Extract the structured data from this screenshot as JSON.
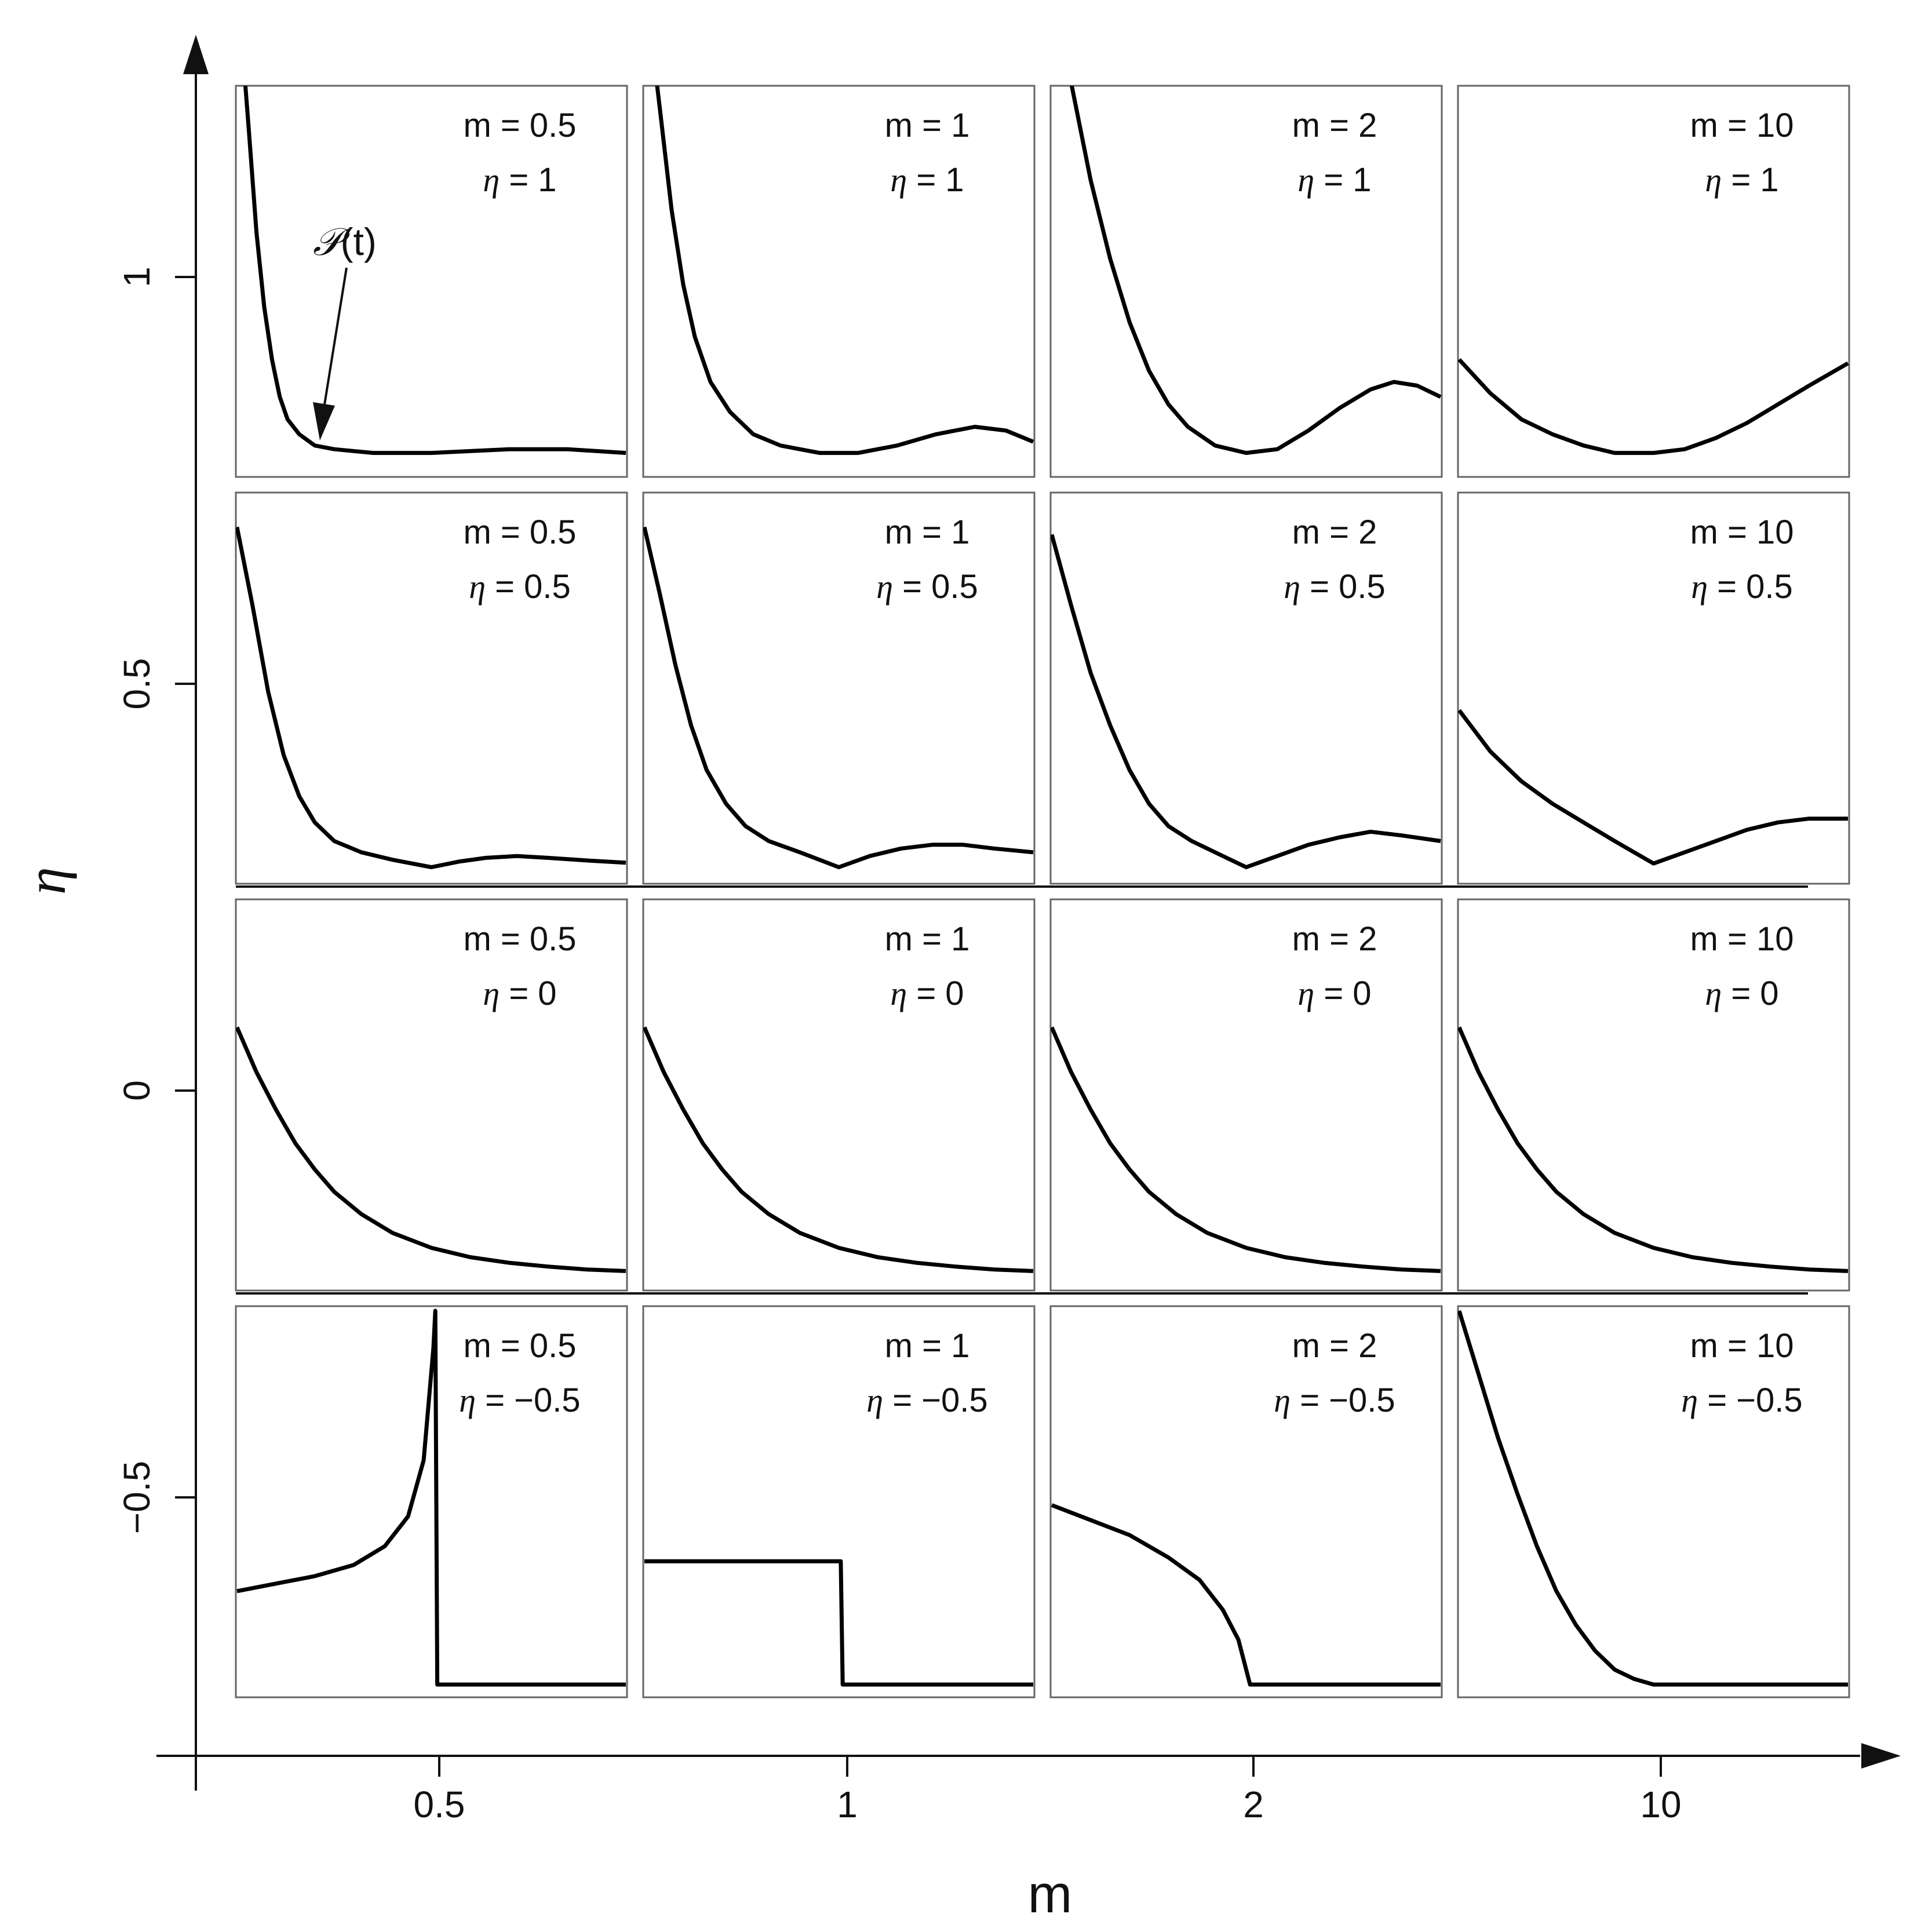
{
  "chart_data": {
    "type": "line",
    "layout": "small-multiples grid, 4 rows x 4 columns",
    "xlabel": "m",
    "ylabel": "η",
    "x_ticks": [
      "0.5",
      "1",
      "2",
      "10"
    ],
    "y_ticks": [
      "1",
      "0.5",
      "0",
      "−0.5"
    ],
    "annotation": {
      "symbol": "𝒫",
      "text": "(t)"
    },
    "label_templates": {
      "m_prefix": "m = ",
      "eta_symbol": "η",
      "eta_prefix": " = "
    },
    "rows": [
      {
        "eta": "1",
        "panels": [
          {
            "m": "0.5",
            "eta": "1",
            "x": [
              0.0,
              0.03,
              0.05,
              0.07,
              0.09,
              0.11,
              0.13,
              0.16,
              0.2,
              0.25,
              0.35,
              0.5,
              0.7,
              0.85,
              1.0
            ],
            "y": [
              1.3,
              0.9,
              0.62,
              0.42,
              0.28,
              0.18,
              0.12,
              0.08,
              0.05,
              0.04,
              0.03,
              0.03,
              0.04,
              0.04,
              0.03
            ]
          },
          {
            "m": "1",
            "eta": "1",
            "x": [
              0.0,
              0.04,
              0.07,
              0.1,
              0.13,
              0.17,
              0.22,
              0.28,
              0.35,
              0.45,
              0.55,
              0.65,
              0.75,
              0.85,
              0.93,
              1.0
            ],
            "y": [
              1.3,
              0.95,
              0.68,
              0.48,
              0.34,
              0.22,
              0.14,
              0.08,
              0.05,
              0.03,
              0.03,
              0.05,
              0.08,
              0.1,
              0.09,
              0.06
            ]
          },
          {
            "m": "2",
            "eta": "1",
            "x": [
              0.0,
              0.05,
              0.1,
              0.15,
              0.2,
              0.25,
              0.3,
              0.35,
              0.42,
              0.5,
              0.58,
              0.66,
              0.74,
              0.82,
              0.88,
              0.94,
              1.0
            ],
            "y": [
              1.3,
              1.02,
              0.76,
              0.55,
              0.38,
              0.25,
              0.16,
              0.1,
              0.05,
              0.03,
              0.04,
              0.09,
              0.15,
              0.2,
              0.22,
              0.21,
              0.18
            ]
          },
          {
            "m": "10",
            "eta": "1",
            "x": [
              0.0,
              0.08,
              0.16,
              0.24,
              0.32,
              0.4,
              0.5,
              0.58,
              0.66,
              0.74,
              0.82,
              0.9,
              1.0
            ],
            "y": [
              0.28,
              0.19,
              0.12,
              0.08,
              0.05,
              0.03,
              0.03,
              0.04,
              0.07,
              0.11,
              0.16,
              0.21,
              0.27
            ]
          }
        ]
      },
      {
        "eta": "0.5",
        "panels": [
          {
            "m": "0.5",
            "eta": "0.5",
            "x": [
              0.0,
              0.04,
              0.08,
              0.12,
              0.16,
              0.2,
              0.25,
              0.32,
              0.4,
              0.5,
              0.57,
              0.64,
              0.72,
              0.8,
              0.9,
              1.0
            ],
            "y": [
              0.92,
              0.71,
              0.48,
              0.31,
              0.2,
              0.13,
              0.08,
              0.05,
              0.03,
              0.01,
              0.025,
              0.035,
              0.04,
              0.035,
              0.028,
              0.022
            ]
          },
          {
            "m": "1",
            "eta": "0.5",
            "x": [
              0.0,
              0.04,
              0.08,
              0.12,
              0.16,
              0.21,
              0.26,
              0.32,
              0.4,
              0.5,
              0.58,
              0.66,
              0.74,
              0.82,
              0.9,
              1.0
            ],
            "y": [
              0.92,
              0.74,
              0.55,
              0.39,
              0.27,
              0.18,
              0.12,
              0.08,
              0.05,
              0.01,
              0.04,
              0.06,
              0.07,
              0.07,
              0.06,
              0.05
            ]
          },
          {
            "m": "2",
            "eta": "0.5",
            "x": [
              0.0,
              0.05,
              0.1,
              0.15,
              0.2,
              0.25,
              0.3,
              0.36,
              0.43,
              0.5,
              0.58,
              0.66,
              0.74,
              0.82,
              0.9,
              1.0
            ],
            "y": [
              0.9,
              0.71,
              0.53,
              0.39,
              0.27,
              0.18,
              0.12,
              0.08,
              0.045,
              0.01,
              0.04,
              0.07,
              0.09,
              0.105,
              0.095,
              0.08
            ]
          },
          {
            "m": "10",
            "eta": "0.5",
            "x": [
              0.0,
              0.08,
              0.16,
              0.24,
              0.32,
              0.4,
              0.5,
              0.58,
              0.66,
              0.74,
              0.82,
              0.9,
              1.0
            ],
            "y": [
              0.43,
              0.32,
              0.24,
              0.18,
              0.13,
              0.08,
              0.02,
              0.05,
              0.08,
              0.11,
              0.13,
              0.14,
              0.14
            ]
          }
        ]
      },
      {
        "eta": "0",
        "panels": [
          {
            "m": "0.5",
            "eta": "0",
            "x": [
              0.0,
              0.05,
              0.1,
              0.15,
              0.2,
              0.25,
              0.32,
              0.4,
              0.5,
              0.6,
              0.7,
              0.8,
              0.9,
              1.0
            ],
            "y": [
              0.67,
              0.55,
              0.45,
              0.36,
              0.29,
              0.23,
              0.17,
              0.12,
              0.08,
              0.055,
              0.04,
              0.03,
              0.022,
              0.018
            ]
          },
          {
            "m": "1",
            "eta": "0",
            "x": [
              0.0,
              0.05,
              0.1,
              0.15,
              0.2,
              0.25,
              0.32,
              0.4,
              0.5,
              0.6,
              0.7,
              0.8,
              0.9,
              1.0
            ],
            "y": [
              0.67,
              0.55,
              0.45,
              0.36,
              0.29,
              0.23,
              0.17,
              0.12,
              0.08,
              0.055,
              0.04,
              0.03,
              0.022,
              0.018
            ]
          },
          {
            "m": "2",
            "eta": "0",
            "x": [
              0.0,
              0.05,
              0.1,
              0.15,
              0.2,
              0.25,
              0.32,
              0.4,
              0.5,
              0.6,
              0.7,
              0.8,
              0.9,
              1.0
            ],
            "y": [
              0.67,
              0.55,
              0.45,
              0.36,
              0.29,
              0.23,
              0.17,
              0.12,
              0.08,
              0.055,
              0.04,
              0.03,
              0.022,
              0.018
            ]
          },
          {
            "m": "10",
            "eta": "0",
            "x": [
              0.0,
              0.05,
              0.1,
              0.15,
              0.2,
              0.25,
              0.32,
              0.4,
              0.5,
              0.6,
              0.7,
              0.8,
              0.9,
              1.0
            ],
            "y": [
              0.67,
              0.55,
              0.45,
              0.36,
              0.29,
              0.23,
              0.17,
              0.12,
              0.08,
              0.055,
              0.04,
              0.03,
              0.022,
              0.018
            ]
          }
        ]
      },
      {
        "eta": "−0.5",
        "panels": [
          {
            "m": "0.5",
            "eta": "−0.5",
            "x": [
              0.0,
              0.1,
              0.2,
              0.3,
              0.38,
              0.44,
              0.48,
              0.505,
              0.51,
              0.515,
              0.52,
              0.6,
              0.8,
              1.0
            ],
            "y": [
              0.25,
              0.27,
              0.29,
              0.32,
              0.37,
              0.45,
              0.6,
              0.9,
              1.0,
              0.0,
              0.0,
              0.0,
              0.0,
              0.0
            ]
          },
          {
            "m": "1",
            "eta": "−0.5",
            "x": [
              0.0,
              0.5,
              0.505,
              0.51,
              0.8,
              1.0
            ],
            "y": [
              0.33,
              0.33,
              0.33,
              0.0,
              0.0,
              0.0
            ]
          },
          {
            "m": "2",
            "eta": "−0.5",
            "x": [
              0.0,
              0.1,
              0.2,
              0.3,
              0.38,
              0.44,
              0.48,
              0.5,
              0.51,
              0.52,
              0.6,
              0.8,
              1.0
            ],
            "y": [
              0.48,
              0.44,
              0.4,
              0.34,
              0.28,
              0.2,
              0.12,
              0.04,
              0.0,
              0.0,
              0.0,
              0.0,
              0.0
            ]
          },
          {
            "m": "10",
            "eta": "−0.5",
            "x": [
              0.0,
              0.05,
              0.1,
              0.15,
              0.2,
              0.25,
              0.3,
              0.35,
              0.4,
              0.45,
              0.5,
              0.6,
              0.8,
              1.0
            ],
            "y": [
              1.0,
              0.83,
              0.66,
              0.51,
              0.37,
              0.25,
              0.16,
              0.09,
              0.04,
              0.015,
              0.0,
              0.0,
              0.0,
              0.0
            ]
          }
        ]
      }
    ]
  }
}
